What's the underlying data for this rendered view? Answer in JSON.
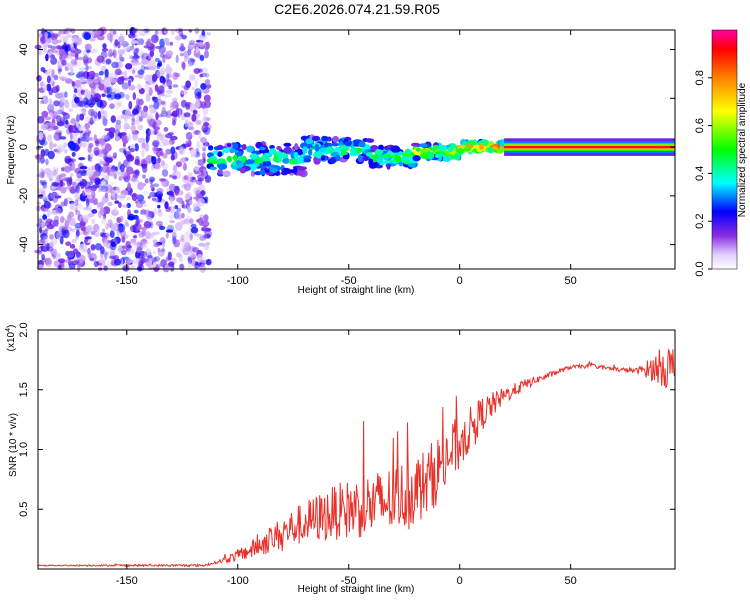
{
  "title": "C2E6.2026.074.21.59.R05",
  "chart_data": [
    {
      "type": "heatmap",
      "name": "spectrogram",
      "xlabel": "Height of straight line (km)",
      "ylabel": "Frequency (Hz)",
      "xlim": [
        -190,
        97
      ],
      "ylim": [
        -50,
        48
      ],
      "xticks": [
        -150,
        -100,
        -50,
        0,
        50
      ],
      "xtick_labels": [
        "-150",
        "-100",
        "-50",
        "0",
        "50"
      ],
      "yticks": [
        -40,
        -20,
        0,
        20,
        40
      ],
      "ytick_labels": [
        "-40",
        "-20",
        "0",
        "20",
        "40"
      ],
      "noise_region_x": [
        -190,
        -113
      ],
      "track_segments": [
        {
          "x_start": -113,
          "x_end": -70,
          "freq_center": -5,
          "freq_halfwidth": 6,
          "level": "medium"
        },
        {
          "x_start": -70,
          "x_end": -40,
          "freq_center": -1,
          "freq_halfwidth": 5,
          "level": "medium"
        },
        {
          "x_start": -40,
          "x_end": -20,
          "freq_center": -4,
          "freq_halfwidth": 4,
          "level": "medium-high"
        },
        {
          "x_start": -20,
          "x_end": 0,
          "freq_center": -2,
          "freq_halfwidth": 3,
          "level": "high"
        },
        {
          "x_start": 0,
          "x_end": 20,
          "freq_center": 0,
          "freq_halfwidth": 2,
          "level": "very-high"
        },
        {
          "x_start": 20,
          "x_end": 97,
          "freq_center": 0,
          "freq_halfwidth": 1.5,
          "level": "max"
        }
      ]
    },
    {
      "type": "colorbar",
      "label": "Normalized spectral amplitude",
      "range": [
        0,
        1
      ],
      "ticks": [
        0.0,
        0.2,
        0.4,
        0.6,
        0.8
      ],
      "tick_labels": [
        "0.0",
        "0.2",
        "0.4",
        "0.6",
        "0.8"
      ],
      "colormap": [
        "#ffffff",
        "#e0d0ff",
        "#8a2be2",
        "#0000ff",
        "#00ffff",
        "#00ff00",
        "#ffff00",
        "#ff8000",
        "#ff0000",
        "#ff00aa"
      ]
    },
    {
      "type": "line",
      "name": "snr",
      "xlabel": "Height of straight line (km)",
      "ylabel": "SNR (10 * v/v)",
      "scale_label": "(x10",
      "scale_exponent": "4",
      "xlim": [
        -190,
        97
      ],
      "ylim": [
        0,
        2.0
      ],
      "xticks": [
        -150,
        -100,
        -50,
        0,
        50
      ],
      "xtick_labels": [
        "-150",
        "-100",
        "-50",
        "0",
        "50"
      ],
      "yticks": [
        0.5,
        1.0,
        1.5,
        2.0
      ],
      "ytick_labels": [
        "0.5",
        "1.0",
        "1.5",
        "2.0"
      ],
      "line_color": "#e8312a",
      "envelope": {
        "x": [
          -190,
          -115,
          -105,
          -95,
          -85,
          -75,
          -65,
          -55,
          -45,
          -35,
          -25,
          -15,
          -5,
          0,
          5,
          10,
          20,
          30,
          40,
          50,
          60,
          70,
          80,
          88,
          92,
          97
        ],
        "y": [
          0.03,
          0.03,
          0.08,
          0.15,
          0.25,
          0.35,
          0.42,
          0.48,
          0.52,
          0.55,
          0.62,
          0.72,
          0.95,
          1.05,
          1.18,
          1.3,
          1.45,
          1.55,
          1.62,
          1.69,
          1.7,
          1.67,
          1.66,
          1.68,
          1.7,
          1.65
        ]
      },
      "noise_amplitude": {
        "x": [
          -190,
          -110,
          -100,
          -80,
          -60,
          -40,
          -20,
          -5,
          5,
          20,
          35,
          50,
          80,
          88,
          97
        ],
        "y": [
          0.005,
          0.01,
          0.05,
          0.14,
          0.22,
          0.28,
          0.3,
          0.28,
          0.18,
          0.07,
          0.03,
          0.015,
          0.02,
          0.12,
          0.25
        ]
      }
    }
  ]
}
